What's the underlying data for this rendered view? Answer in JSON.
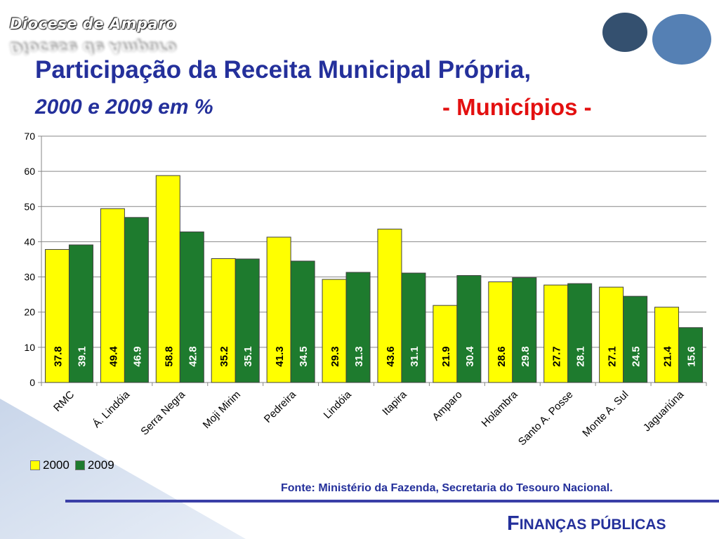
{
  "header": {
    "brand": "Diocese de Amparo",
    "title": "Participação da Receita Municipal Própria,",
    "subtitle": "2000 e 2009 em %",
    "tag": "- Municípios -"
  },
  "colors": {
    "series_2000": "#ffff00",
    "series_2009": "#1e7b2e",
    "title": "#24309b",
    "tag": "#e31010"
  },
  "chart_data": {
    "type": "bar",
    "categories": [
      "RMC",
      "Á. Lindóia",
      "Serra Negra",
      "Moji Mirim",
      "Pedreira",
      "Lindóia",
      "Itapira",
      "Amparo",
      "Holambra",
      "Santo A. Posse",
      "Monte A. Sul",
      "Jaguariúna"
    ],
    "series": [
      {
        "name": "2000",
        "values": [
          37.8,
          49.4,
          58.8,
          35.2,
          41.3,
          29.3,
          43.6,
          21.9,
          28.6,
          27.7,
          27.1,
          21.4
        ]
      },
      {
        "name": "2009",
        "values": [
          39.1,
          46.9,
          42.8,
          35.1,
          34.5,
          31.3,
          31.1,
          30.4,
          29.8,
          28.1,
          24.5,
          15.6
        ]
      }
    ],
    "yticks": [
      "0",
      "10",
      "20",
      "30",
      "40",
      "50",
      "60",
      "70"
    ],
    "ylim": [
      0,
      70
    ],
    "grid": true,
    "legend": "bottom-left"
  },
  "footer": {
    "source": "Fonte: Ministério da Fazenda, Secretaria do Tesouro Nacional.",
    "brand_initial": "F",
    "brand_rest": "INANÇAS PÚBLICAS"
  }
}
